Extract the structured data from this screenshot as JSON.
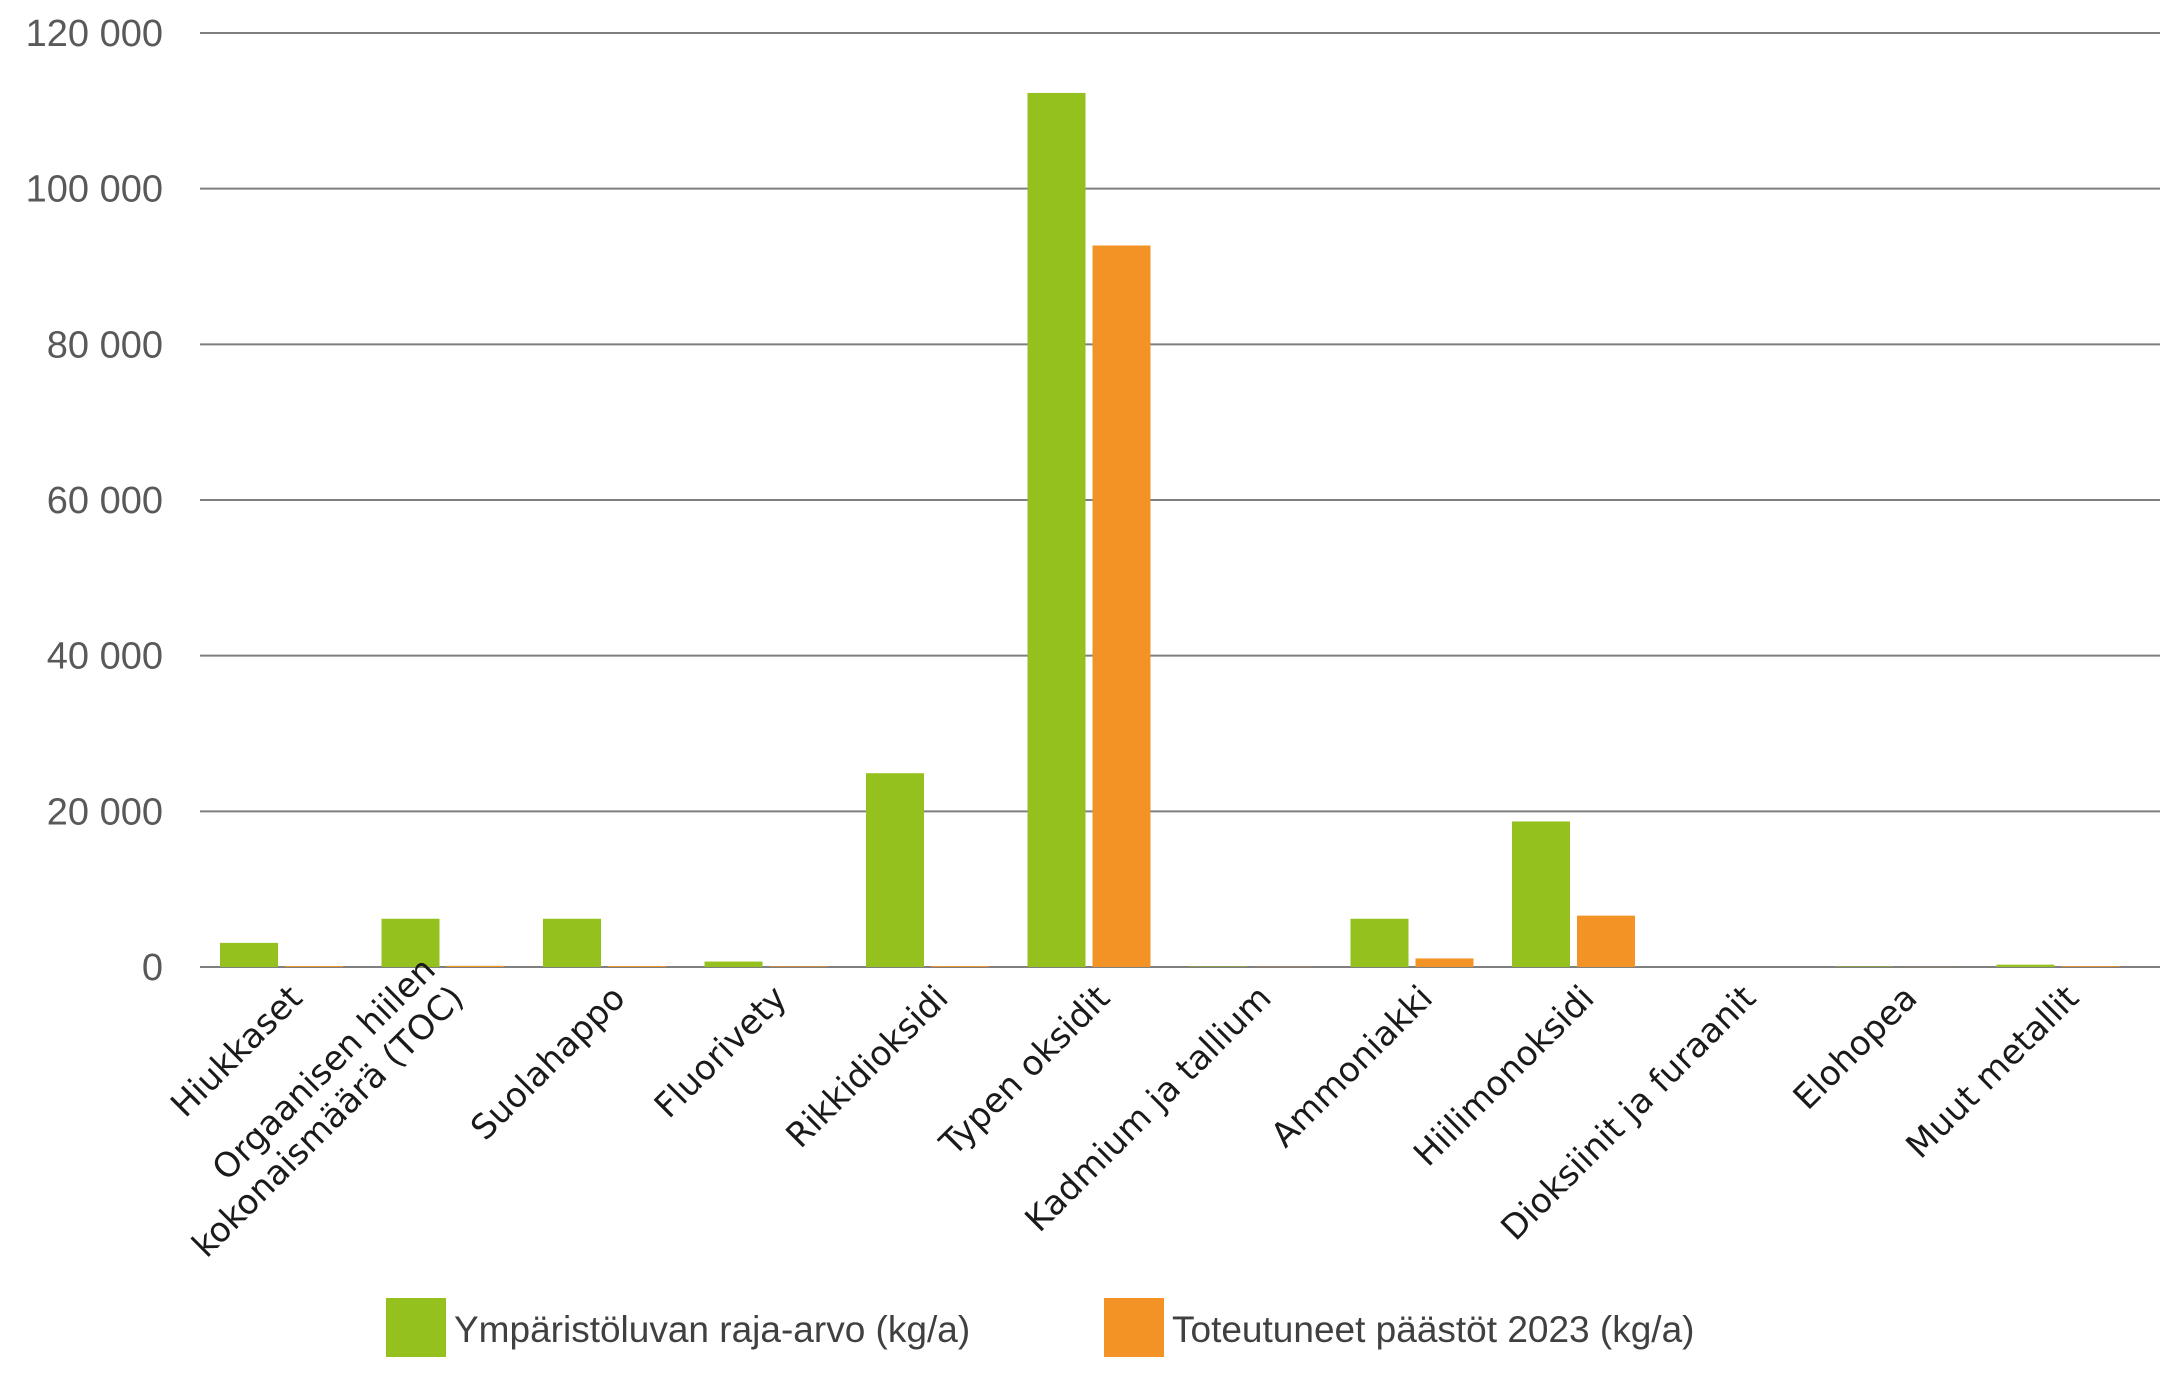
{
  "chart_data": {
    "type": "bar",
    "categories": [
      [
        "Hiukkaset"
      ],
      [
        "Orgaanisen hiilen",
        "kokonaismäärä (TOC)"
      ],
      [
        "Suolahappo"
      ],
      [
        "Fluorivety"
      ],
      [
        "Rikkidioksidi"
      ],
      [
        "Typen oksidit"
      ],
      [
        "Kadmium ja tallium"
      ],
      [
        "Ammoniakki"
      ],
      [
        "Hiilimonoksidi"
      ],
      [
        "Dioksiinit ja furaanit"
      ],
      [
        "Elohopea"
      ],
      [
        "Muut metallit"
      ]
    ],
    "series": [
      {
        "name": "Ympäristöluvan raja-arvo (kg/a)",
        "color": "#95c11f",
        "values": [
          3100,
          6200,
          6200,
          700,
          24900,
          112300,
          60,
          6200,
          18700,
          0,
          60,
          300
        ]
      },
      {
        "name": "Toteutuneet päästöt 2023 (kg/a)",
        "color": "#f39325",
        "values": [
          120,
          150,
          120,
          80,
          120,
          92700,
          30,
          1100,
          6600,
          0,
          20,
          100
        ]
      }
    ],
    "ylim": [
      0,
      120000
    ],
    "yticks": [
      0,
      20000,
      40000,
      60000,
      80000,
      100000,
      120000
    ],
    "ytick_labels": [
      "0",
      "20 000",
      "40 000",
      "60 000",
      "80 000",
      "100 000",
      "120 000"
    ],
    "title": "",
    "xlabel": "",
    "ylabel": "",
    "grid": true,
    "legend_position": "bottom"
  }
}
